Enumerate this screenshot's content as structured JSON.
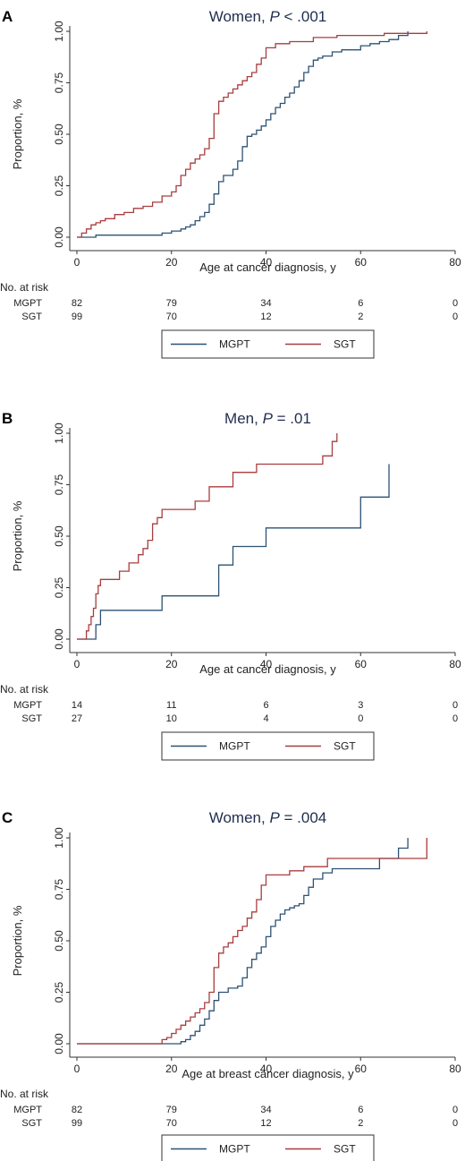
{
  "chart_data": [
    {
      "type": "line",
      "panel_label": "A",
      "title_main": "Women, ",
      "title_p": "P",
      "title_rest": " < .001",
      "xlabel": "Age at cancer diagnosis, y",
      "ylabel": "Proportion, %",
      "xlim": [
        0,
        80
      ],
      "ylim": [
        0,
        1
      ],
      "x_ticks": [
        "0",
        "20",
        "40",
        "60",
        "80"
      ],
      "y_ticks": [
        "0.00",
        "0.25",
        "0.50",
        "0.75",
        "1.00"
      ],
      "risk_label": "No. at risk",
      "risk_x": [
        0,
        20,
        40,
        60,
        80
      ],
      "risk_table": [
        {
          "name": "MGPT",
          "values": [
            "82",
            "79",
            "34",
            "6",
            "0"
          ]
        },
        {
          "name": "SGT",
          "values": [
            "99",
            "70",
            "12",
            "2",
            "0"
          ]
        }
      ],
      "series": [
        {
          "name": "MGPT",
          "color": "#2d5273",
          "x": [
            0,
            4,
            18,
            20,
            22,
            23,
            24,
            25,
            26,
            27,
            28,
            29,
            30,
            31,
            32,
            33,
            34,
            35,
            36,
            37,
            38,
            39,
            40,
            41,
            42,
            43,
            44,
            45,
            46,
            47,
            48,
            49,
            50,
            51,
            52,
            54,
            56,
            58,
            60,
            62,
            64,
            66,
            68,
            70
          ],
          "y": [
            0,
            0.01,
            0.02,
            0.03,
            0.04,
            0.05,
            0.06,
            0.08,
            0.1,
            0.12,
            0.16,
            0.21,
            0.27,
            0.3,
            0.3,
            0.33,
            0.37,
            0.44,
            0.49,
            0.5,
            0.52,
            0.54,
            0.57,
            0.6,
            0.63,
            0.65,
            0.68,
            0.7,
            0.73,
            0.76,
            0.8,
            0.83,
            0.86,
            0.87,
            0.88,
            0.9,
            0.91,
            0.91,
            0.93,
            0.94,
            0.95,
            0.96,
            0.98,
            1.0
          ]
        },
        {
          "name": "SGT",
          "color": "#a83d3e",
          "x": [
            0,
            1,
            2,
            3,
            4,
            5,
            6,
            8,
            10,
            12,
            14,
            16,
            18,
            20,
            21,
            22,
            23,
            24,
            25,
            26,
            27,
            28,
            29,
            30,
            31,
            32,
            33,
            34,
            35,
            36,
            37,
            38,
            39,
            40,
            42,
            45,
            50,
            55,
            60,
            65,
            70,
            74
          ],
          "y": [
            0,
            0.02,
            0.04,
            0.06,
            0.07,
            0.08,
            0.09,
            0.11,
            0.12,
            0.14,
            0.15,
            0.17,
            0.2,
            0.22,
            0.25,
            0.3,
            0.33,
            0.36,
            0.38,
            0.4,
            0.43,
            0.48,
            0.6,
            0.66,
            0.68,
            0.7,
            0.72,
            0.74,
            0.76,
            0.78,
            0.8,
            0.84,
            0.87,
            0.92,
            0.94,
            0.95,
            0.97,
            0.98,
            0.98,
            0.99,
            0.99,
            1.0
          ]
        }
      ]
    },
    {
      "type": "line",
      "panel_label": "B",
      "title_main": "Men, ",
      "title_p": "P",
      "title_rest": " = .01",
      "xlabel": "Age at cancer diagnosis, y",
      "ylabel": "Proportion, %",
      "xlim": [
        0,
        80
      ],
      "ylim": [
        0,
        1
      ],
      "x_ticks": [
        "0",
        "20",
        "40",
        "60",
        "80"
      ],
      "y_ticks": [
        "0.00",
        "0.25",
        "0.50",
        "0.75",
        "1.00"
      ],
      "risk_label": "No. at risk",
      "risk_x": [
        0,
        20,
        40,
        60,
        80
      ],
      "risk_table": [
        {
          "name": "MGPT",
          "values": [
            "14",
            "11",
            "6",
            "3",
            "0"
          ]
        },
        {
          "name": "SGT",
          "values": [
            "27",
            "10",
            "4",
            "0",
            "0"
          ]
        }
      ],
      "series": [
        {
          "name": "MGPT",
          "color": "#2d5273",
          "x": [
            0,
            4,
            5,
            18,
            30,
            33,
            40,
            60,
            66
          ],
          "y": [
            0,
            0.07,
            0.14,
            0.21,
            0.36,
            0.45,
            0.54,
            0.69,
            0.85
          ]
        },
        {
          "name": "SGT",
          "color": "#a83d3e",
          "x": [
            0,
            2,
            2.5,
            3,
            3.5,
            4,
            4.5,
            5,
            9,
            11,
            13,
            14,
            15,
            16,
            17,
            18,
            25,
            28,
            33,
            38,
            39,
            41,
            52,
            54,
            55
          ],
          "y": [
            0,
            0.04,
            0.07,
            0.11,
            0.15,
            0.22,
            0.26,
            0.29,
            0.33,
            0.37,
            0.41,
            0.44,
            0.48,
            0.56,
            0.59,
            0.63,
            0.67,
            0.74,
            0.81,
            0.85,
            0.85,
            0.85,
            0.89,
            0.96,
            1.0
          ]
        }
      ]
    },
    {
      "type": "line",
      "panel_label": "C",
      "title_main": "Women, ",
      "title_p": "P",
      "title_rest": " = .004",
      "xlabel": "Age at breast cancer diagnosis, y",
      "ylabel": "Proportion, %",
      "xlim": [
        0,
        80
      ],
      "ylim": [
        0,
        1
      ],
      "x_ticks": [
        "0",
        "20",
        "40",
        "60",
        "80"
      ],
      "y_ticks": [
        "0.00",
        "0.25",
        "0.50",
        "0.75",
        "1.00"
      ],
      "risk_label": "No. at risk",
      "risk_x": [
        0,
        20,
        40,
        60,
        80
      ],
      "risk_table": [
        {
          "name": "MGPT",
          "values": [
            "82",
            "79",
            "34",
            "6",
            "0"
          ]
        },
        {
          "name": "SGT",
          "values": [
            "99",
            "70",
            "12",
            "2",
            "0"
          ]
        }
      ],
      "series": [
        {
          "name": "MGPT",
          "color": "#2d5273",
          "x": [
            0,
            22,
            23,
            24,
            25,
            26,
            27,
            28,
            29,
            30,
            32,
            33,
            34,
            35,
            36,
            37,
            38,
            39,
            40,
            41,
            42,
            43,
            44,
            45,
            46,
            47,
            48,
            49,
            50,
            52,
            54,
            56,
            58,
            60,
            62,
            64,
            66,
            68,
            70
          ],
          "y": [
            0,
            0.01,
            0.02,
            0.04,
            0.06,
            0.09,
            0.12,
            0.16,
            0.21,
            0.25,
            0.27,
            0.27,
            0.28,
            0.32,
            0.37,
            0.41,
            0.44,
            0.47,
            0.52,
            0.57,
            0.6,
            0.63,
            0.65,
            0.66,
            0.67,
            0.68,
            0.72,
            0.76,
            0.8,
            0.83,
            0.85,
            0.85,
            0.85,
            0.85,
            0.85,
            0.9,
            0.9,
            0.95,
            1.0
          ]
        },
        {
          "name": "SGT",
          "color": "#a83d3e",
          "x": [
            0,
            18,
            19,
            20,
            21,
            22,
            23,
            24,
            25,
            26,
            27,
            28,
            29,
            30,
            31,
            32,
            33,
            34,
            35,
            36,
            37,
            38,
            39,
            40,
            42,
            45,
            48,
            50,
            53,
            55,
            60,
            65,
            68,
            70,
            74
          ],
          "y": [
            0,
            0.02,
            0.03,
            0.05,
            0.07,
            0.09,
            0.11,
            0.13,
            0.15,
            0.17,
            0.2,
            0.25,
            0.37,
            0.44,
            0.47,
            0.49,
            0.52,
            0.55,
            0.57,
            0.61,
            0.64,
            0.7,
            0.77,
            0.82,
            0.82,
            0.84,
            0.86,
            0.86,
            0.9,
            0.9,
            0.9,
            0.9,
            0.9,
            0.9,
            1.0
          ]
        }
      ]
    }
  ]
}
